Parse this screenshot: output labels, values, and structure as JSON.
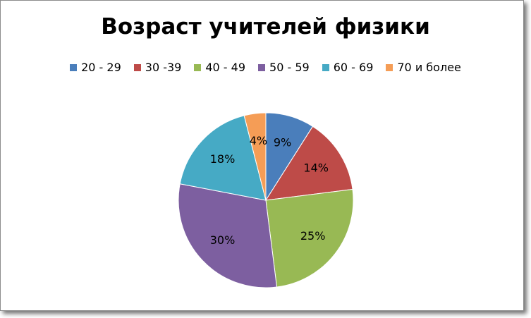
{
  "chart_data": {
    "type": "pie",
    "title": "Возраст учителей физики",
    "legend_position": "top",
    "categories": [
      "20 - 29",
      "30 -39",
      "40 - 49",
      "50 - 59",
      "60 - 69",
      "70 и более"
    ],
    "values": [
      9,
      14,
      25,
      30,
      18,
      4
    ],
    "labels": [
      "9%",
      "14%",
      "25%",
      "30%",
      "18%",
      "4%"
    ],
    "colors": [
      "#4a7ebb",
      "#be4b48",
      "#98b954",
      "#7d5fa0",
      "#46aac5",
      "#f59d56"
    ]
  }
}
